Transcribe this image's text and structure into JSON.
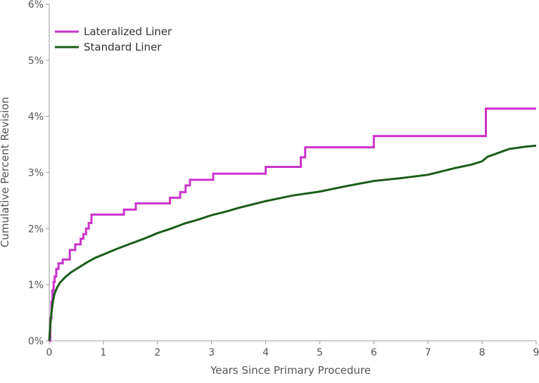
{
  "chart_data": {
    "type": "line",
    "title": "",
    "xlabel": "Years Since Primary Procedure",
    "ylabel": "Cumulative Percent Revision",
    "xlim": [
      0,
      9
    ],
    "ylim": [
      0,
      6
    ],
    "x_ticks": [
      0,
      1,
      2,
      3,
      4,
      5,
      6,
      7,
      8,
      9
    ],
    "y_ticks": [
      0,
      1,
      2,
      3,
      4,
      5,
      6
    ],
    "y_tick_labels": [
      "0%",
      "1%",
      "2%",
      "3%",
      "4%",
      "5%",
      "6%"
    ],
    "grid": false,
    "legend_position": "top-left",
    "series": [
      {
        "name": "Lateralized Liner",
        "color": "#cc33cc",
        "step": true,
        "points": [
          [
            0,
            0
          ],
          [
            0.02,
            0.4
          ],
          [
            0.04,
            0.7
          ],
          [
            0.06,
            0.9
          ],
          [
            0.08,
            1.05
          ],
          [
            0.1,
            1.15
          ],
          [
            0.13,
            1.28
          ],
          [
            0.17,
            1.38
          ],
          [
            0.25,
            1.45
          ],
          [
            0.38,
            1.62
          ],
          [
            0.48,
            1.72
          ],
          [
            0.58,
            1.82
          ],
          [
            0.63,
            1.9
          ],
          [
            0.68,
            2.0
          ],
          [
            0.73,
            2.1
          ],
          [
            0.78,
            2.25
          ],
          [
            1.38,
            2.34
          ],
          [
            1.6,
            2.45
          ],
          [
            2.23,
            2.55
          ],
          [
            2.42,
            2.65
          ],
          [
            2.52,
            2.77
          ],
          [
            2.6,
            2.87
          ],
          [
            3.03,
            2.98
          ],
          [
            4.0,
            3.1
          ],
          [
            4.65,
            3.27
          ],
          [
            4.73,
            3.45
          ],
          [
            6.0,
            3.65
          ],
          [
            8.07,
            4.14
          ],
          [
            9.0,
            4.14
          ]
        ]
      },
      {
        "name": "Standard Liner",
        "color": "#1a5c1a",
        "step": false,
        "points": [
          [
            0,
            0
          ],
          [
            0.02,
            0.3
          ],
          [
            0.04,
            0.5
          ],
          [
            0.07,
            0.72
          ],
          [
            0.1,
            0.85
          ],
          [
            0.15,
            0.96
          ],
          [
            0.2,
            1.04
          ],
          [
            0.3,
            1.14
          ],
          [
            0.4,
            1.22
          ],
          [
            0.55,
            1.31
          ],
          [
            0.7,
            1.4
          ],
          [
            0.85,
            1.48
          ],
          [
            1.0,
            1.54
          ],
          [
            1.25,
            1.64
          ],
          [
            1.5,
            1.73
          ],
          [
            1.75,
            1.82
          ],
          [
            2.0,
            1.92
          ],
          [
            2.25,
            2.0
          ],
          [
            2.5,
            2.09
          ],
          [
            2.75,
            2.16
          ],
          [
            3.0,
            2.24
          ],
          [
            3.25,
            2.3
          ],
          [
            3.5,
            2.37
          ],
          [
            3.75,
            2.43
          ],
          [
            4.0,
            2.49
          ],
          [
            4.5,
            2.59
          ],
          [
            5.0,
            2.66
          ],
          [
            5.5,
            2.76
          ],
          [
            6.0,
            2.85
          ],
          [
            6.5,
            2.9
          ],
          [
            7.0,
            2.96
          ],
          [
            7.5,
            3.08
          ],
          [
            7.8,
            3.14
          ],
          [
            8.0,
            3.2
          ],
          [
            8.1,
            3.28
          ],
          [
            8.3,
            3.35
          ],
          [
            8.5,
            3.42
          ],
          [
            8.8,
            3.46
          ],
          [
            9.0,
            3.48
          ]
        ]
      }
    ]
  }
}
